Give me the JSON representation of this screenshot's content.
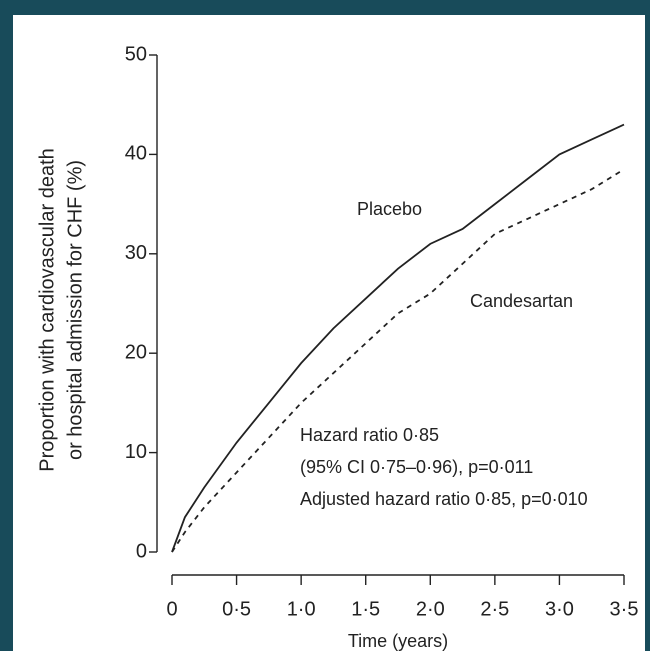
{
  "chart_data": {
    "type": "line",
    "xlabel": "Time (years)",
    "ylabel": [
      "Proportion with cardiovascular death",
      "or hospital admission for CHF (%)"
    ],
    "annotations": [
      "Hazard ratio 0·85",
      "(95% CI 0·75–0·96), p=0·011",
      "Adjusted hazard ratio 0·85, p=0·010"
    ],
    "x": [
      0,
      0.1,
      0.25,
      0.5,
      0.75,
      1.0,
      1.25,
      1.5,
      1.75,
      2.0,
      2.25,
      2.5,
      2.75,
      3.0,
      3.25,
      3.5
    ],
    "series": [
      {
        "name": "Placebo",
        "color": "#222222",
        "dash": "solid",
        "values": [
          0,
          3.5,
          6.5,
          11,
          15,
          19,
          22.5,
          25.5,
          28.5,
          31,
          32.5,
          35,
          37.5,
          40,
          41.5,
          43
        ]
      },
      {
        "name": "Candesartan",
        "color": "#222222",
        "dash": "dashed",
        "values": [
          0,
          2,
          4.5,
          8,
          11.5,
          15,
          18,
          21,
          24,
          26,
          29,
          32,
          33.5,
          35,
          36.5,
          38.5
        ]
      }
    ],
    "xlim": [
      0,
      3.5
    ],
    "ylim": [
      0,
      50
    ],
    "xticks": [
      0,
      {
        "value": 0.5,
        "label": "0·5"
      },
      {
        "value": 1,
        "label": "1·0"
      },
      {
        "value": 1.5,
        "label": "1·5"
      },
      {
        "value": 2,
        "label": "2·0"
      },
      {
        "value": 2.5,
        "label": "2·5"
      },
      {
        "value": 3,
        "label": "3·0"
      },
      {
        "value": 3.5,
        "label": "3·5"
      }
    ],
    "yticks": [
      0,
      10,
      20,
      30,
      40,
      50
    ],
    "grid": false
  }
}
